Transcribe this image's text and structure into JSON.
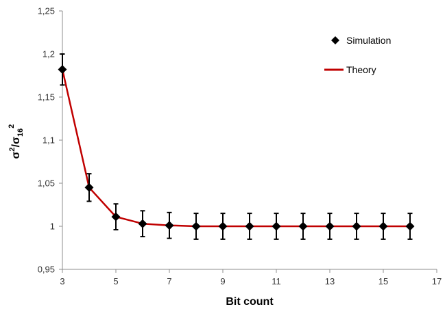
{
  "chart_data": {
    "type": "line",
    "xlabel": "Bit count",
    "ylabel_parts": {
      "base": "σ",
      "exp": "2",
      "slash": "/",
      "base2": "σ",
      "sub": "16",
      "exp2": "2"
    },
    "xlim": [
      3,
      17
    ],
    "ylim": [
      0.95,
      1.25
    ],
    "x_ticks": [
      3,
      5,
      7,
      9,
      11,
      13,
      15,
      17
    ],
    "y_ticks": [
      0.95,
      1.0,
      1.05,
      1.1,
      1.15,
      1.2,
      1.25
    ],
    "x_tick_labels": [
      "3",
      "5",
      "7",
      "9",
      "11",
      "13",
      "15",
      "17"
    ],
    "y_tick_labels": [
      "0,95",
      "1",
      "1,05",
      "1,1",
      "1,15",
      "1,2",
      "1,25"
    ],
    "grid": false,
    "legend_position": "top-right",
    "series": [
      {
        "name": "Simulation",
        "kind": "scatter-errorbar",
        "color": "#000000",
        "marker": "diamond",
        "x": [
          3,
          4,
          5,
          6,
          7,
          8,
          9,
          10,
          11,
          12,
          13,
          14,
          15,
          16
        ],
        "y": [
          1.182,
          1.045,
          1.011,
          1.003,
          1.001,
          1.0,
          1.0,
          1.0,
          1.0,
          1.0,
          1.0,
          1.0,
          1.0,
          1.0
        ],
        "err": [
          0.018,
          0.016,
          0.015,
          0.015,
          0.015,
          0.015,
          0.015,
          0.015,
          0.015,
          0.015,
          0.015,
          0.015,
          0.015,
          0.015
        ]
      },
      {
        "name": "Theory",
        "kind": "line",
        "color": "#c00000",
        "x": [
          3,
          4,
          5,
          6,
          7,
          8,
          9,
          10,
          11,
          12,
          13,
          14,
          15,
          16
        ],
        "y": [
          1.182,
          1.045,
          1.011,
          1.003,
          1.001,
          1.0,
          1.0,
          1.0,
          1.0,
          1.0,
          1.0,
          1.0,
          1.0,
          1.0
        ]
      }
    ]
  }
}
